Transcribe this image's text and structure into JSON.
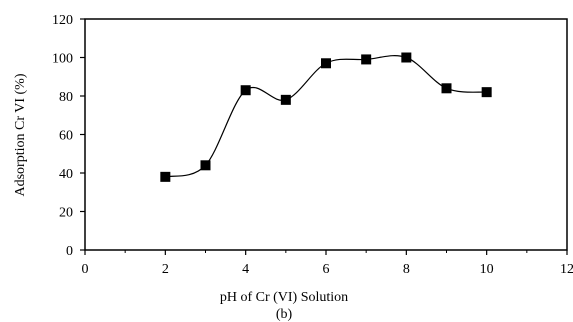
{
  "caption": "(b)",
  "chart_data": {
    "type": "scatter",
    "title": "",
    "xlabel": "pH of Cr (VI) Solution",
    "ylabel": "Adsorption Cr VI (%)",
    "xlim": [
      0,
      12
    ],
    "ylim": [
      0,
      120
    ],
    "x_ticks": [
      0,
      2,
      4,
      6,
      8,
      10,
      12
    ],
    "y_ticks": [
      0,
      20,
      40,
      60,
      80,
      100,
      120
    ],
    "grid": false,
    "legend": "none",
    "smooth_line": true,
    "marker": "square",
    "colors": {
      "series": "#000000",
      "axis": "#000000"
    },
    "series": [
      {
        "x": [
          2,
          3,
          4,
          5,
          6,
          7,
          8,
          9,
          10
        ],
        "y": [
          38,
          44,
          83,
          78,
          97,
          99,
          100,
          84,
          82
        ]
      }
    ]
  }
}
